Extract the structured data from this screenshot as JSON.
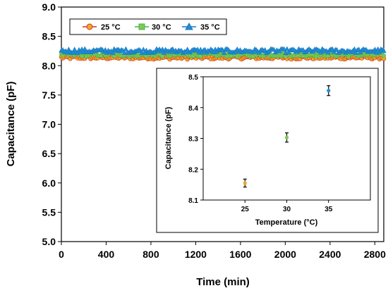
{
  "chart_data": [
    {
      "type": "line",
      "xlabel": "Time (min)",
      "ylabel": "Capacitance (pF)",
      "xlim": [
        0,
        2880
      ],
      "ylim": [
        5.0,
        9.0
      ],
      "x_ticks": [
        "0",
        "400",
        "800",
        "1200",
        "1600",
        "2000",
        "2400",
        "2800"
      ],
      "y_ticks": [
        "5.0",
        "5.5",
        "6.0",
        "6.5",
        "7.0",
        "7.5",
        "8.0",
        "8.5",
        "9.0"
      ],
      "legend_position": "top-left",
      "x_start": 0,
      "x_end": 2880,
      "series": [
        {
          "name": "25 °C",
          "color": "#F5A623",
          "line_color": "#C0392B",
          "marker": "circle",
          "mean": 8.14,
          "noise": 0.03
        },
        {
          "name": "30 °C",
          "color": "#7DCB4E",
          "line_color": "#4CAF50",
          "marker": "square",
          "mean": 8.19,
          "noise": 0.03
        },
        {
          "name": "35 °C",
          "color": "#1F8FD6",
          "line_color": "#1A75BC",
          "marker": "triangle",
          "mean": 8.25,
          "noise": 0.035
        }
      ]
    },
    {
      "type": "scatter",
      "xlabel": "Temperature (°C)",
      "ylabel": "Capacitance (pF)",
      "xlim": [
        20,
        40
      ],
      "ylim": [
        8.1,
        8.5
      ],
      "x_ticks": [
        "25",
        "30",
        "35"
      ],
      "y_ticks": [
        "8.1",
        "8.2",
        "8.3",
        "8.4",
        "8.5"
      ],
      "points": [
        {
          "x": 25,
          "y": 8.155,
          "err": 0.013,
          "color": "#F5A623"
        },
        {
          "x": 30,
          "y": 8.303,
          "err": 0.015,
          "color": "#7DCB4E"
        },
        {
          "x": 35,
          "y": 8.455,
          "err": 0.016,
          "color": "#1F8FD6"
        }
      ]
    }
  ]
}
